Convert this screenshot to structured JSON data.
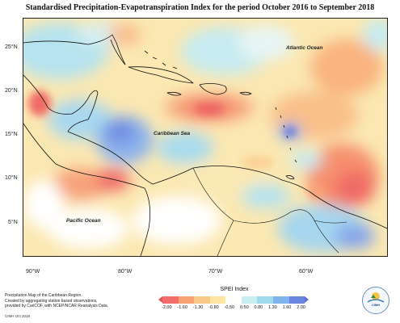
{
  "title": "Standardised Precipitation-Evapotranspiration Index for the period October 2016 to September 2018",
  "ocean_labels": {
    "atlantic": "Atlantic Ocean",
    "caribbean": "Caribbean Sea",
    "pacific": "Pacific Ocean"
  },
  "lat_ticks": [
    "25°N",
    "20°N",
    "15°N",
    "10°N",
    "5°N"
  ],
  "lon_ticks": [
    "90°W",
    "80°W",
    "70°W",
    "60°W"
  ],
  "footnote": {
    "line1": "Precipitation Map of the Caribbean Region.",
    "line2": "Created by aggregating station based observations,",
    "line3": "provided by CariCOF, with NCEP/NCAR Reanalysis Data."
  },
  "credit": "CIMH Oct 2018",
  "legend": {
    "title": "SPEI Index",
    "ticks": [
      "-2.00",
      "-1.60",
      "-1.30",
      "-0.80",
      "-0.50",
      "0.50",
      "0.80",
      "1.30",
      "1.60",
      "2.00"
    ],
    "colors": [
      "#f46d6d",
      "#f8a070",
      "#fbc987",
      "#fde4a0",
      "#ffffff",
      "#c9eef0",
      "#9fd9ee",
      "#7fb3ec",
      "#6a86e0"
    ],
    "arrow_low_color": "#e8504f",
    "arrow_high_color": "#5c6fd8"
  },
  "logo": {
    "text": "CIMH"
  }
}
